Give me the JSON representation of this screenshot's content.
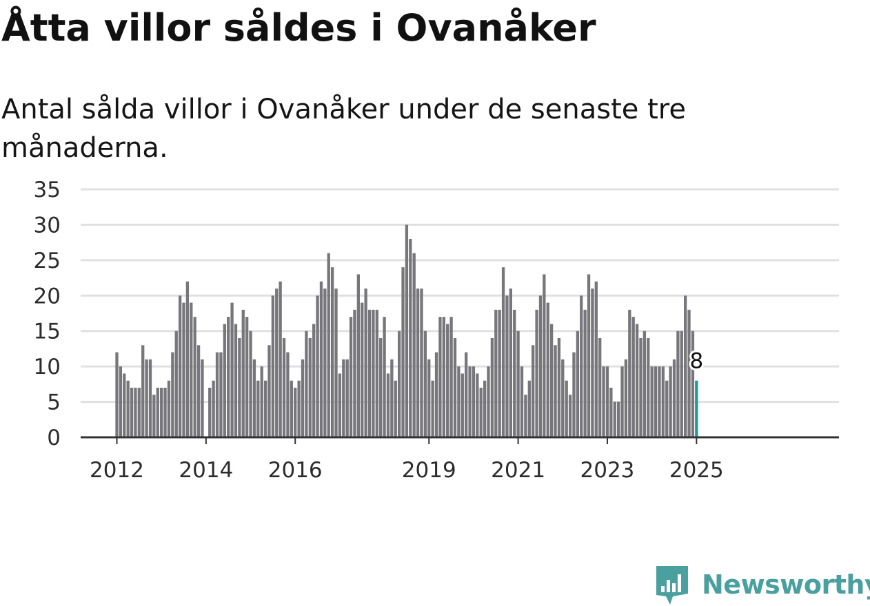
{
  "title": "Åtta villor såldes i Ovanåker",
  "subtitle": "Antal sålda villor i Ovanåker under de senaste tre månaderna.",
  "brand": {
    "name": "Newsworthy",
    "color": "#4a9f9f",
    "icon": "bar-chart-shield-icon"
  },
  "chart_data": {
    "type": "bar",
    "title": "",
    "xlabel": "",
    "ylabel": "",
    "ylim": [
      0,
      35
    ],
    "yticks": [
      "0",
      "5",
      "10",
      "15",
      "20",
      "25",
      "30",
      "35"
    ],
    "xticks": [
      "2012",
      "2014",
      "2016",
      "2019",
      "2021",
      "2023",
      "2025"
    ],
    "grid": true,
    "legend": "none",
    "bar_color": "#76767b",
    "highlight_color": "#1a9c95",
    "grid_color": "#e0e0e0",
    "axis_color": "#333333",
    "highlight_label": "8",
    "series": [
      {
        "values": [
          12,
          10,
          9,
          8,
          7,
          7,
          7,
          13,
          11,
          11,
          6,
          7,
          7,
          7,
          8,
          12,
          15,
          20,
          19,
          22,
          19,
          17,
          13,
          11,
          null,
          7,
          8,
          12,
          12,
          16,
          17,
          19,
          16,
          14,
          18,
          17,
          15,
          11,
          8,
          10,
          8,
          13,
          20,
          21,
          22,
          14,
          12,
          8,
          7,
          8,
          11,
          15,
          14,
          16,
          20,
          22,
          21,
          26,
          24,
          21,
          9,
          11,
          11,
          17,
          18,
          23,
          19,
          21,
          18,
          18,
          18,
          14,
          17,
          9,
          11,
          8,
          15,
          24,
          30,
          28,
          26,
          21,
          21,
          15,
          11,
          8,
          12,
          17,
          17,
          16,
          17,
          14,
          10,
          9,
          12,
          10,
          10,
          9,
          7,
          8,
          10,
          14,
          18,
          18,
          24,
          20,
          21,
          18,
          15,
          10,
          6,
          8,
          13,
          18,
          20,
          23,
          19,
          16,
          13,
          14,
          11,
          8,
          6,
          12,
          15,
          20,
          18,
          23,
          21,
          22,
          14,
          10,
          10,
          7,
          5,
          5,
          10,
          11,
          18,
          17,
          16,
          14,
          15,
          14,
          10,
          10,
          10,
          10,
          8,
          10,
          11,
          15,
          15,
          20,
          18,
          15,
          8
        ]
      }
    ]
  }
}
